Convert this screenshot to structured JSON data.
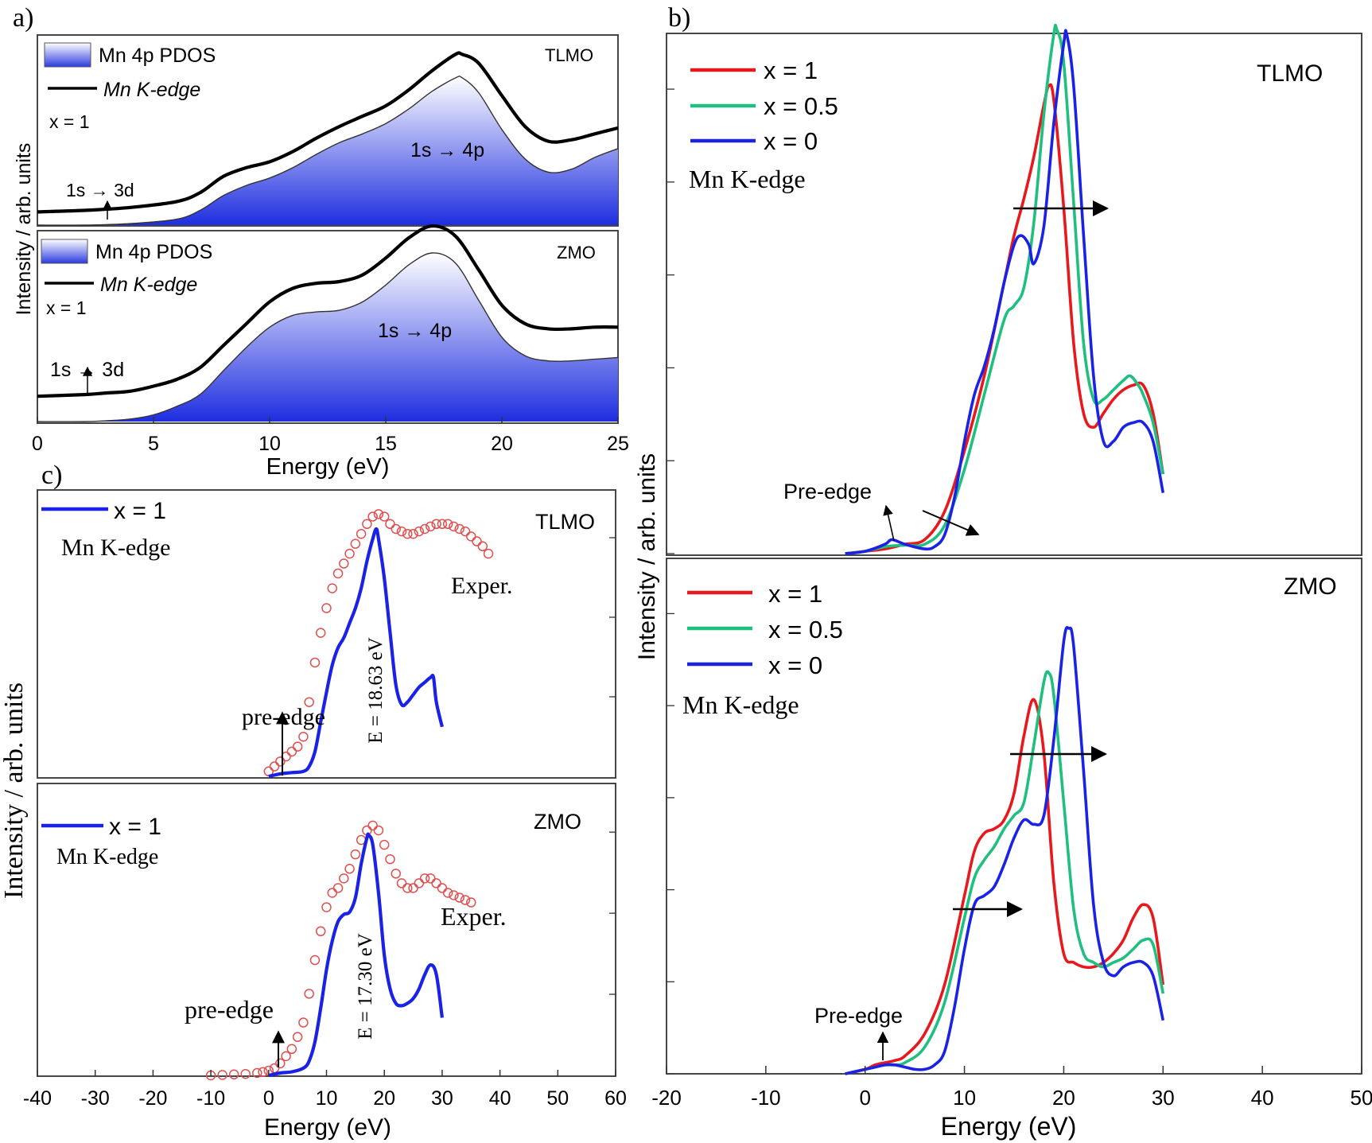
{
  "panel_a": {
    "label": "a)",
    "xlabel": "Energy (eV)",
    "ylabel": "Intensity / arb. units",
    "x_ticks": [
      "0",
      "5",
      "10",
      "15",
      "20",
      "25"
    ],
    "top": {
      "tag": "TLMO",
      "legend_pdos": "Mn 4p PDOS",
      "legend_kedge": "Mn K-edge",
      "x_label": "x = 1",
      "ann_3d": "1s → 3d",
      "ann_4p": "1s → 4p"
    },
    "bottom": {
      "tag": "ZMO",
      "legend_pdos": "Mn 4p PDOS",
      "legend_kedge": "Mn K-edge",
      "x_label": "x = 1",
      "ann_3d": "1s → 3d",
      "ann_4p": "1s → 4p"
    }
  },
  "panel_b": {
    "label": "b)",
    "xlabel": "Energy (eV)",
    "ylabel": "Intensity / arb. units",
    "x_ticks": [
      "-20",
      "-10",
      "0",
      "10",
      "20",
      "30",
      "40",
      "50"
    ],
    "top": {
      "tag": "TLMO",
      "subtitle": "Mn K-edge",
      "preedge": "Pre-edge"
    },
    "bottom": {
      "tag": "ZMO",
      "subtitle": "Mn K-edge",
      "preedge": "Pre-edge"
    },
    "legend": [
      "x = 1",
      "x = 0.5",
      "x = 0"
    ]
  },
  "panel_c": {
    "label": "c)",
    "xlabel": "Energy (eV)",
    "ylabel": "Intensity / arb. units",
    "x_ticks": [
      "-40",
      "-30",
      "-20",
      "-10",
      "0",
      "10",
      "20",
      "30",
      "40",
      "50",
      "60"
    ],
    "top": {
      "tag": "TLMO",
      "legend": "x = 1",
      "subtitle": "Mn K-edge",
      "exper": "Exper.",
      "preedge": "pre-edge",
      "energy": "E = 18.63 eV"
    },
    "bottom": {
      "tag": "ZMO",
      "legend": "x = 1",
      "subtitle": "Mn K-edge",
      "exper": "Exper.",
      "preedge": "pre-edge",
      "energy": "E = 17.30 eV"
    }
  },
  "colors": {
    "x1": "#e8191c",
    "x05": "#1fc07f",
    "x0": "#1a22e6",
    "exper": "#e05050",
    "pdos": "#1e2ee0",
    "black": "#000000"
  },
  "chart_data": [
    {
      "type": "area",
      "panel": "a-TLMO",
      "xlim": [
        0,
        25
      ],
      "series": [
        {
          "name": "Mn 4p PDOS",
          "x": [
            0,
            2,
            4,
            6,
            7,
            8,
            9,
            10,
            11,
            12,
            13,
            14,
            15,
            16,
            17,
            18,
            18.3,
            19,
            20,
            21,
            22,
            23,
            24,
            25
          ],
          "y": [
            0,
            0,
            0.01,
            0.04,
            0.1,
            0.2,
            0.27,
            0.32,
            0.39,
            0.48,
            0.56,
            0.62,
            0.69,
            0.79,
            0.91,
            1.0,
            1.0,
            0.9,
            0.65,
            0.45,
            0.36,
            0.38,
            0.46,
            0.52
          ]
        },
        {
          "name": "Mn K-edge",
          "x": [
            0,
            2,
            4,
            6,
            7,
            8,
            9,
            10,
            11,
            12,
            13,
            14,
            15,
            16,
            17,
            18,
            18.3,
            19,
            20,
            21,
            22,
            23,
            24,
            25
          ],
          "y": [
            0.09,
            0.1,
            0.12,
            0.16,
            0.22,
            0.33,
            0.39,
            0.43,
            0.5,
            0.59,
            0.67,
            0.74,
            0.81,
            0.92,
            1.05,
            1.16,
            1.16,
            1.1,
            0.88,
            0.67,
            0.57,
            0.58,
            0.62,
            0.66
          ]
        }
      ]
    },
    {
      "type": "area",
      "panel": "a-ZMO",
      "xlim": [
        0,
        25
      ],
      "series": [
        {
          "name": "Mn 4p PDOS",
          "x": [
            0,
            2,
            3,
            4,
            5,
            6,
            7,
            8,
            9,
            10,
            11,
            12,
            13,
            14,
            15,
            16,
            17,
            18,
            19,
            20,
            21,
            22,
            23,
            24,
            25
          ],
          "y": [
            0,
            0,
            0.005,
            0.015,
            0.04,
            0.09,
            0.16,
            0.3,
            0.44,
            0.56,
            0.63,
            0.65,
            0.66,
            0.71,
            0.81,
            0.93,
            1.0,
            0.94,
            0.72,
            0.5,
            0.39,
            0.36,
            0.36,
            0.37,
            0.38
          ]
        },
        {
          "name": "Mn K-edge",
          "x": [
            0,
            2,
            3,
            4,
            5,
            6,
            7,
            8,
            9,
            10,
            11,
            12,
            13,
            14,
            15,
            16,
            17,
            18,
            19,
            20,
            21,
            22,
            23,
            24,
            25
          ],
          "y": [
            0.15,
            0.16,
            0.17,
            0.18,
            0.21,
            0.25,
            0.32,
            0.45,
            0.58,
            0.71,
            0.79,
            0.82,
            0.83,
            0.87,
            0.97,
            1.09,
            1.16,
            1.1,
            0.9,
            0.69,
            0.58,
            0.55,
            0.55,
            0.56,
            0.56
          ]
        }
      ]
    },
    {
      "type": "line",
      "panel": "b-TLMO",
      "xlim": [
        -20,
        50
      ],
      "series": [
        {
          "name": "x = 1",
          "x": [
            -2,
            0,
            2,
            4,
            6,
            8,
            10,
            12,
            14,
            15,
            16,
            17,
            18,
            18.5,
            19,
            20,
            21,
            22,
            23,
            24,
            25,
            26,
            27,
            28,
            29,
            30
          ],
          "y": [
            0,
            0.005,
            0.01,
            0.02,
            0.03,
            0.09,
            0.22,
            0.38,
            0.58,
            0.68,
            0.76,
            0.85,
            0.96,
            1.0,
            0.97,
            0.74,
            0.45,
            0.3,
            0.27,
            0.3,
            0.33,
            0.35,
            0.36,
            0.36,
            0.3,
            0.17
          ]
        },
        {
          "name": "x = 0.5",
          "x": [
            -2,
            0,
            2,
            4,
            6,
            8,
            10,
            12,
            14,
            15,
            16,
            17,
            18,
            19,
            19.3,
            20,
            21,
            22,
            23,
            24,
            25,
            26,
            26.7,
            27.5,
            28,
            29,
            30
          ],
          "y": [
            0,
            0.005,
            0.015,
            0.018,
            0.02,
            0.06,
            0.18,
            0.34,
            0.5,
            0.53,
            0.57,
            0.71,
            0.94,
            1.11,
            1.12,
            1.05,
            0.75,
            0.45,
            0.33,
            0.33,
            0.35,
            0.37,
            0.38,
            0.36,
            0.34,
            0.28,
            0.17
          ]
        },
        {
          "name": "x = 0",
          "x": [
            -2,
            0,
            2,
            2.7,
            4,
            6,
            7,
            8,
            9,
            10,
            11,
            12,
            13,
            14,
            15,
            15.7,
            16.5,
            17,
            18,
            19,
            20,
            20.3,
            21,
            22,
            23,
            24,
            25,
            26,
            27,
            28,
            29,
            30
          ],
          "y": [
            0,
            0.005,
            0.02,
            0.03,
            0.02,
            0.01,
            0.015,
            0.04,
            0.12,
            0.24,
            0.34,
            0.4,
            0.48,
            0.58,
            0.66,
            0.68,
            0.66,
            0.62,
            0.7,
            0.92,
            1.09,
            1.11,
            1.0,
            0.68,
            0.38,
            0.24,
            0.24,
            0.27,
            0.28,
            0.28,
            0.24,
            0.13
          ]
        }
      ]
    },
    {
      "type": "line",
      "panel": "b-ZMO",
      "xlim": [
        -20,
        50
      ],
      "series": [
        {
          "name": "x = 1",
          "x": [
            -2,
            0,
            1,
            2,
            3,
            4,
            6,
            8,
            10,
            11,
            12,
            13,
            14,
            15,
            16,
            17,
            18,
            19,
            20,
            21,
            22,
            23,
            24,
            25,
            26,
            27,
            28,
            29,
            30
          ],
          "y": [
            0,
            0.01,
            0.02,
            0.025,
            0.03,
            0.04,
            0.09,
            0.2,
            0.4,
            0.5,
            0.54,
            0.55,
            0.57,
            0.63,
            0.76,
            0.84,
            0.72,
            0.43,
            0.27,
            0.25,
            0.24,
            0.24,
            0.25,
            0.27,
            0.3,
            0.35,
            0.38,
            0.35,
            0.2
          ]
        },
        {
          "name": "x = 0.5",
          "x": [
            -2,
            0,
            1,
            2,
            3,
            4,
            6,
            8,
            10,
            11,
            12,
            13,
            14,
            15,
            16,
            17,
            18,
            18.5,
            19,
            20,
            21,
            22,
            23,
            24,
            25,
            26,
            27,
            28,
            29,
            30
          ],
          "y": [
            0,
            0.01,
            0.015,
            0.02,
            0.02,
            0.025,
            0.06,
            0.16,
            0.35,
            0.44,
            0.48,
            0.51,
            0.55,
            0.58,
            0.61,
            0.74,
            0.88,
            0.9,
            0.85,
            0.61,
            0.37,
            0.27,
            0.25,
            0.24,
            0.25,
            0.26,
            0.28,
            0.3,
            0.29,
            0.18
          ]
        },
        {
          "name": "x = 0",
          "x": [
            -2,
            0,
            1,
            2,
            3,
            4,
            5,
            6,
            7,
            8,
            9,
            10,
            11,
            12,
            13,
            14,
            15,
            16,
            17,
            18,
            19,
            20,
            20.5,
            21,
            22,
            23,
            24,
            25,
            26,
            27,
            28,
            29,
            30
          ],
          "y": [
            0,
            0.01,
            0.015,
            0.02,
            0.02,
            0.015,
            0.01,
            0.01,
            0.02,
            0.05,
            0.15,
            0.28,
            0.38,
            0.4,
            0.42,
            0.47,
            0.53,
            0.57,
            0.56,
            0.58,
            0.75,
            0.97,
            1.0,
            0.96,
            0.68,
            0.38,
            0.25,
            0.22,
            0.24,
            0.25,
            0.25,
            0.22,
            0.12
          ]
        }
      ]
    },
    {
      "type": "line",
      "panel": "c-TLMO",
      "xlim": [
        -40,
        60
      ],
      "series": [
        {
          "name": "x = 1",
          "x": [
            0,
            2,
            4,
            6,
            7,
            8,
            9,
            10,
            11,
            12,
            13,
            14,
            15,
            16,
            17,
            18,
            18.6,
            19,
            20,
            21,
            22,
            23,
            24,
            25,
            26,
            27,
            28,
            28.5,
            29,
            30
          ],
          "y": [
            0,
            0.01,
            0.015,
            0.02,
            0.04,
            0.1,
            0.22,
            0.34,
            0.45,
            0.52,
            0.56,
            0.62,
            0.68,
            0.76,
            0.87,
            0.96,
            1.0,
            0.96,
            0.8,
            0.58,
            0.37,
            0.29,
            0.3,
            0.33,
            0.36,
            0.38,
            0.4,
            0.4,
            0.3,
            0.2
          ]
        },
        {
          "name": "Exper.",
          "x": [
            0,
            1,
            2,
            3,
            4,
            5,
            6,
            7,
            8,
            9,
            10,
            11,
            12,
            13,
            14,
            15,
            16,
            17,
            18,
            19,
            20,
            21,
            22,
            23,
            24,
            25,
            26,
            27,
            28,
            29,
            30,
            31,
            32,
            33,
            34,
            35,
            36,
            37,
            38
          ],
          "y": [
            0.02,
            0.04,
            0.06,
            0.08,
            0.1,
            0.12,
            0.16,
            0.3,
            0.46,
            0.58,
            0.68,
            0.76,
            0.82,
            0.86,
            0.9,
            0.94,
            0.98,
            1.02,
            1.05,
            1.06,
            1.05,
            1.02,
            1.0,
            0.99,
            0.98,
            0.98,
            0.99,
            1.0,
            1.01,
            1.02,
            1.02,
            1.02,
            1.01,
            1.0,
            0.99,
            0.97,
            0.95,
            0.93,
            0.9
          ]
        }
      ]
    },
    {
      "type": "line",
      "panel": "c-ZMO",
      "xlim": [
        -40,
        60
      ],
      "series": [
        {
          "name": "x = 1",
          "x": [
            0,
            2,
            4,
            6,
            7,
            8,
            9,
            10,
            11,
            12,
            13,
            14,
            15,
            16,
            17,
            17.3,
            18,
            19,
            20,
            21,
            22,
            23,
            24,
            25,
            26,
            27,
            28,
            29,
            30
          ],
          "y": [
            0,
            0.01,
            0.015,
            0.03,
            0.06,
            0.14,
            0.28,
            0.44,
            0.56,
            0.64,
            0.67,
            0.68,
            0.74,
            0.88,
            0.99,
            1.0,
            0.96,
            0.76,
            0.5,
            0.36,
            0.3,
            0.29,
            0.3,
            0.32,
            0.36,
            0.42,
            0.46,
            0.42,
            0.24
          ]
        },
        {
          "name": "Exper.",
          "x": [
            -10,
            -8,
            -6,
            -4,
            -2,
            -1,
            0,
            1,
            2,
            3,
            4,
            5,
            6,
            7,
            8,
            9,
            10,
            11,
            12,
            13,
            14,
            15,
            16,
            17,
            18,
            19,
            20,
            21,
            22,
            23,
            24,
            25,
            26,
            27,
            28,
            29,
            30,
            31,
            32,
            33,
            34,
            35
          ],
          "y": [
            0,
            0.002,
            0.004,
            0.006,
            0.01,
            0.014,
            0.02,
            0.03,
            0.05,
            0.08,
            0.11,
            0.16,
            0.22,
            0.34,
            0.48,
            0.6,
            0.7,
            0.76,
            0.78,
            0.82,
            0.86,
            0.92,
            0.98,
            1.02,
            1.04,
            1.02,
            0.96,
            0.9,
            0.84,
            0.8,
            0.78,
            0.78,
            0.8,
            0.82,
            0.82,
            0.8,
            0.78,
            0.76,
            0.75,
            0.74,
            0.73,
            0.72
          ]
        }
      ]
    }
  ]
}
